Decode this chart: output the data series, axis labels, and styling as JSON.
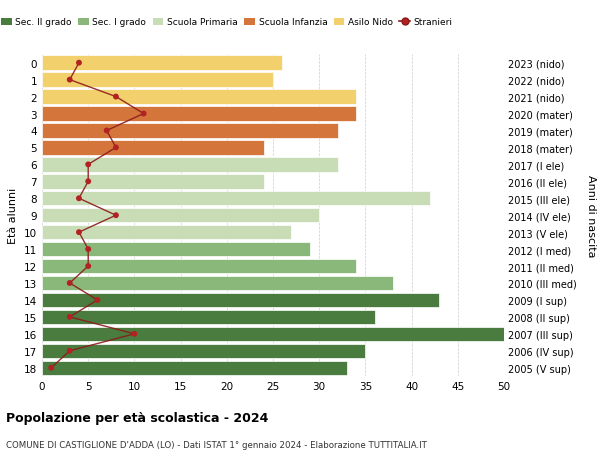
{
  "ages": [
    18,
    17,
    16,
    15,
    14,
    13,
    12,
    11,
    10,
    9,
    8,
    7,
    6,
    5,
    4,
    3,
    2,
    1,
    0
  ],
  "years": [
    "2005 (V sup)",
    "2006 (IV sup)",
    "2007 (III sup)",
    "2008 (II sup)",
    "2009 (I sup)",
    "2010 (III med)",
    "2011 (II med)",
    "2012 (I med)",
    "2013 (V ele)",
    "2014 (IV ele)",
    "2015 (III ele)",
    "2016 (II ele)",
    "2017 (I ele)",
    "2018 (mater)",
    "2019 (mater)",
    "2020 (mater)",
    "2021 (nido)",
    "2022 (nido)",
    "2023 (nido)"
  ],
  "bar_values": [
    33,
    35,
    50,
    36,
    43,
    38,
    34,
    29,
    27,
    30,
    42,
    24,
    32,
    24,
    32,
    34,
    34,
    25,
    26
  ],
  "bar_colors": [
    "#4a7c3f",
    "#4a7c3f",
    "#4a7c3f",
    "#4a7c3f",
    "#4a7c3f",
    "#8ab87a",
    "#8ab87a",
    "#8ab87a",
    "#c8ddb5",
    "#c8ddb5",
    "#c8ddb5",
    "#c8ddb5",
    "#c8ddb5",
    "#d4763b",
    "#d4763b",
    "#d4763b",
    "#f2d06b",
    "#f2d06b",
    "#f2d06b"
  ],
  "stranieri_values": [
    1,
    3,
    10,
    3,
    6,
    3,
    5,
    5,
    4,
    8,
    4,
    5,
    5,
    8,
    7,
    11,
    8,
    3,
    4
  ],
  "legend_labels": [
    "Sec. II grado",
    "Sec. I grado",
    "Scuola Primaria",
    "Scuola Infanzia",
    "Asilo Nido",
    "Stranieri"
  ],
  "legend_colors": [
    "#4a7c3f",
    "#8ab87a",
    "#c8ddb5",
    "#d4763b",
    "#f2d06b",
    "#b22222"
  ],
  "ylabel_left": "Età alunni",
  "ylabel_right": "Anni di nascita",
  "title": "Popolazione per età scolastica - 2024",
  "subtitle": "COMUNE DI CASTIGLIONE D'ADDA (LO) - Dati ISTAT 1° gennaio 2024 - Elaborazione TUTTITALIA.IT",
  "xlim": [
    0,
    50
  ],
  "xticks": [
    0,
    5,
    10,
    15,
    20,
    25,
    30,
    35,
    40,
    45,
    50
  ],
  "background_color": "#ffffff",
  "grid_color": "#cccccc",
  "stranieri_line_color": "#8b1a1a",
  "stranieri_dot_color": "#b22222"
}
